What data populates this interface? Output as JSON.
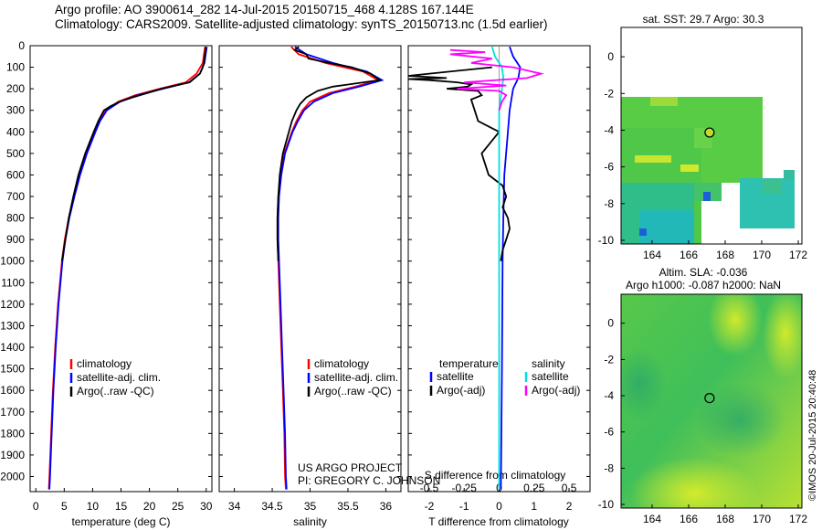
{
  "title": {
    "line1": "Argo profile: AO 3900614_282 14-Jul-2015 20150715_468 4.128S 167.144E",
    "line2": "Climatology: CARS2009. Satellite-adjusted climatology: synTS_20150713.nc (1.5d earlier)"
  },
  "credit": "US ARGO PROJECT\nPI: GREGORY C. JOHNSON",
  "watermark": "©IMOS 20-Jul-2015 20:40:48",
  "colors": {
    "climatology": "#ff0000",
    "satellite": "#0000ff",
    "argo": "#000000",
    "sal_sat": "#00e0e0",
    "sal_argo": "#ff00ff"
  },
  "chart_data": [
    {
      "type": "line",
      "name": "temperature",
      "xlabel": "temperature (deg C)",
      "ylabel": "",
      "xlim": [
        -1,
        31
      ],
      "ylim": [
        2070,
        0
      ],
      "xticks": [
        0,
        5,
        10,
        15,
        20,
        25,
        30
      ],
      "yticks": [
        0,
        100,
        200,
        300,
        400,
        500,
        600,
        700,
        800,
        900,
        1000,
        1100,
        1200,
        1300,
        1400,
        1500,
        1600,
        1700,
        1800,
        1900,
        2000
      ],
      "legend": [
        "climatology",
        "satellite-adj. clim.",
        "Argo(..raw -QC)"
      ],
      "series": [
        {
          "name": "climatology",
          "depth": [
            5,
            40,
            80,
            130,
            170,
            200,
            230,
            260,
            300,
            350,
            400,
            500,
            600,
            700,
            800,
            900,
            1000,
            1200,
            1400,
            1600,
            1800,
            2000,
            2060
          ],
          "values": [
            29.8,
            29.6,
            29.4,
            28.3,
            26.4,
            21.8,
            17.5,
            14.5,
            12.3,
            11.2,
            10.4,
            8.9,
            7.7,
            6.7,
            5.8,
            5.1,
            4.6,
            3.9,
            3.4,
            3.0,
            2.7,
            2.4,
            2.3
          ]
        },
        {
          "name": "satellite",
          "depth": [
            5,
            40,
            80,
            130,
            170,
            200,
            230,
            260,
            300,
            350,
            400,
            500,
            600,
            700,
            800,
            900,
            1000,
            1200,
            1400,
            1600,
            1800,
            2000,
            2060
          ],
          "values": [
            30.1,
            29.9,
            29.7,
            28.9,
            27.0,
            22.4,
            17.9,
            14.8,
            12.5,
            11.3,
            10.5,
            9.0,
            7.8,
            6.8,
            5.9,
            5.2,
            4.7,
            4.0,
            3.5,
            3.1,
            2.8,
            2.5,
            2.4
          ]
        },
        {
          "name": "argo",
          "depth": [
            5,
            20,
            40,
            60,
            80,
            100,
            130,
            170,
            200,
            220,
            240,
            260,
            280,
            300,
            350,
            400,
            500,
            600,
            700,
            800,
            900,
            1000
          ],
          "values": [
            29.9,
            29.9,
            29.8,
            29.7,
            29.6,
            29.4,
            28.9,
            27.1,
            22.1,
            19.6,
            17.0,
            14.8,
            13.2,
            12.0,
            11.0,
            10.2,
            8.7,
            7.5,
            6.6,
            5.8,
            5.2,
            4.6
          ]
        }
      ]
    },
    {
      "type": "line",
      "name": "salinity",
      "xlabel": "salinity",
      "xlim": [
        33.8,
        36.2
      ],
      "ylim": [
        2070,
        0
      ],
      "xticks": [
        34,
        34.5,
        35,
        35.5,
        36
      ],
      "xticklabels": [
        "34",
        "34.5",
        "35",
        "35.5",
        "36"
      ],
      "legend": [
        "climatology",
        "satellite-adj. clim.",
        "Argo(..raw -QC)"
      ],
      "series": [
        {
          "name": "climatology",
          "depth": [
            5,
            40,
            80,
            120,
            160,
            190,
            220,
            260,
            300,
            350,
            400,
            500,
            600,
            700,
            800,
            900,
            1000,
            1200,
            1400,
            1600,
            1800,
            2000,
            2060
          ],
          "values": [
            34.75,
            34.85,
            35.2,
            35.7,
            35.9,
            35.6,
            35.25,
            35.0,
            34.9,
            34.82,
            34.76,
            34.66,
            34.61,
            34.58,
            34.57,
            34.57,
            34.58,
            34.6,
            34.62,
            34.64,
            34.66,
            34.67,
            34.68
          ]
        },
        {
          "name": "satellite",
          "depth": [
            5,
            40,
            80,
            120,
            160,
            190,
            220,
            260,
            300,
            350,
            400,
            500,
            600,
            700,
            800,
            900,
            1000,
            1200,
            1400,
            1600,
            1800,
            2000,
            2060
          ],
          "values": [
            34.8,
            34.95,
            35.3,
            35.75,
            35.95,
            35.65,
            35.3,
            35.05,
            34.92,
            34.84,
            34.77,
            34.67,
            34.62,
            34.59,
            34.58,
            34.58,
            34.59,
            34.61,
            34.63,
            34.65,
            34.67,
            34.68,
            34.69
          ]
        },
        {
          "name": "argo",
          "depth": [
            5,
            20,
            40,
            60,
            80,
            100,
            130,
            160,
            190,
            210,
            240,
            270,
            300,
            350,
            400,
            500,
            600,
            700,
            800,
            900,
            1000
          ],
          "values": [
            34.85,
            34.8,
            34.95,
            34.98,
            35.25,
            35.55,
            35.8,
            35.92,
            35.3,
            35.1,
            34.95,
            34.87,
            34.82,
            34.76,
            34.72,
            34.64,
            34.6,
            34.58,
            34.57,
            34.57,
            34.58
          ]
        }
      ]
    },
    {
      "type": "line",
      "name": "difference",
      "xlabel": "T difference from climatology",
      "xlabel2": "S difference from climatology",
      "xlim": [
        -2.6,
        2.6
      ],
      "ylim": [
        2070,
        0
      ],
      "xticks": [
        -2,
        -1,
        0,
        1,
        2
      ],
      "xticks2": [
        -0.5,
        -0.25,
        0,
        0.25,
        0.5
      ],
      "xticklabels2": [
        "-0.5",
        "-0.25",
        "0",
        "0.25",
        "0.5"
      ],
      "legend": [
        "temperature",
        "satellite",
        "Argo(-adj)",
        "salinity",
        "satellite",
        "Argo(-adj)"
      ],
      "series": [
        {
          "name": "T satellite",
          "depth": [
            5,
            50,
            100,
            150,
            200,
            250,
            300,
            400,
            600,
            800,
            1000,
            1500,
            2060
          ],
          "values": [
            0.3,
            0.4,
            0.6,
            0.55,
            0.4,
            0.35,
            0.3,
            0.25,
            0.15,
            0.12,
            0.1,
            0.08,
            0.05
          ]
        },
        {
          "name": "T argo",
          "depth": [
            100,
            140,
            150,
            155,
            160,
            170,
            180,
            190,
            200,
            210,
            230,
            250,
            300,
            350,
            400,
            500,
            600,
            650,
            700,
            750,
            800,
            850,
            900,
            950,
            1000
          ],
          "values": [
            -0.2,
            -2.6,
            -1.5,
            -2.6,
            -2.0,
            -1.2,
            -0.8,
            -0.9,
            -1.5,
            -0.6,
            -0.5,
            -0.8,
            -0.7,
            -0.6,
            0.0,
            -0.5,
            -0.3,
            0.1,
            0.2,
            0.1,
            0.25,
            0.3,
            0.2,
            0.1,
            0.05
          ]
        },
        {
          "name": "S satellite",
          "depth": [
            5,
            50,
            100,
            150,
            200,
            250,
            300,
            500,
            800,
            1000,
            1500,
            2060
          ],
          "values": [
            -0.05,
            -0.03,
            0.02,
            0.03,
            0.02,
            0.01,
            0.0,
            0.0,
            0.0,
            0.0,
            0.0,
            0.0
          ]
        },
        {
          "name": "S argo",
          "depth": [
            20,
            30,
            40,
            60,
            80,
            100,
            130,
            150,
            170,
            185,
            200,
            210,
            230,
            260,
            300
          ],
          "values": [
            -0.35,
            -0.1,
            -0.35,
            -0.05,
            -0.2,
            0.1,
            0.3,
            0.2,
            -0.25,
            0.05,
            -0.3,
            0.0,
            0.05,
            0.02,
            0.0
          ]
        }
      ]
    },
    {
      "type": "heatmap",
      "name": "sst_map",
      "title": "sat. SST: 29.7 Argo: 30.3",
      "xticks": [
        164,
        166,
        168,
        170,
        172
      ],
      "yticks": [
        0,
        -2,
        -4,
        -6,
        -8,
        -10
      ],
      "xlim": [
        162.3,
        172.2
      ],
      "ylim": [
        -10.2,
        1.6
      ],
      "profile": [
        167.144,
        -4.128
      ]
    },
    {
      "type": "heatmap",
      "name": "sla_map",
      "title": "Altim. SLA: -0.036",
      "subtitle": "Argo h1000: -0.087 h2000: NaN",
      "xticks": [
        164,
        166,
        168,
        170,
        172
      ],
      "yticks": [
        0,
        -2,
        -4,
        -6,
        -8,
        -10
      ],
      "xlim": [
        162.3,
        172.2
      ],
      "ylim": [
        -10.2,
        1.6
      ],
      "profile": [
        167.144,
        -4.128
      ]
    }
  ]
}
